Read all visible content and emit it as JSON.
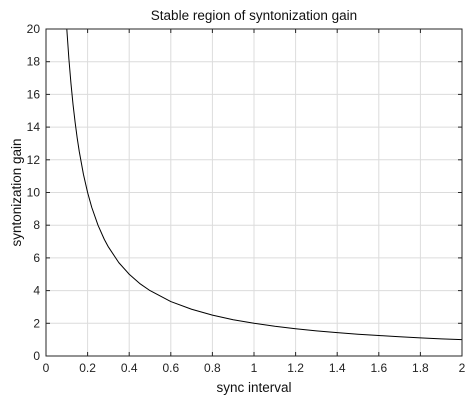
{
  "chart_data": {
    "type": "line",
    "title": "Stable region of syntonization gain",
    "xlabel": "sync interval",
    "ylabel": "syntonization gain",
    "xlim": [
      0,
      2
    ],
    "ylim": [
      0,
      20
    ],
    "xticks": [
      0,
      0.2,
      0.4,
      0.6,
      0.8,
      1,
      1.2,
      1.4,
      1.6,
      1.8,
      2
    ],
    "xtick_labels": [
      "0",
      "0.2",
      "0.4",
      "0.6",
      "0.8",
      "1",
      "1.2",
      "1.4",
      "1.6",
      "1.8",
      "2"
    ],
    "yticks": [
      0,
      2,
      4,
      6,
      8,
      10,
      12,
      14,
      16,
      18,
      20
    ],
    "ytick_labels": [
      "0",
      "2",
      "4",
      "6",
      "8",
      "10",
      "12",
      "14",
      "16",
      "18",
      "20"
    ],
    "grid": true,
    "series": [
      {
        "color": "#000000",
        "x": [
          0.1,
          0.11,
          0.12,
          0.13,
          0.14,
          0.15,
          0.16,
          0.18,
          0.2,
          0.22,
          0.25,
          0.28,
          0.3,
          0.35,
          0.4,
          0.45,
          0.5,
          0.6,
          0.7,
          0.8,
          0.9,
          1.0,
          1.1,
          1.2,
          1.3,
          1.4,
          1.5,
          1.6,
          1.7,
          1.8,
          1.9,
          2.0
        ],
        "y": [
          20,
          18.18,
          16.67,
          15.38,
          14.29,
          13.33,
          12.5,
          11.11,
          10,
          9.09,
          8,
          7.14,
          6.67,
          5.71,
          5,
          4.44,
          4,
          3.33,
          2.86,
          2.5,
          2.22,
          2,
          1.82,
          1.67,
          1.54,
          1.43,
          1.33,
          1.25,
          1.18,
          1.11,
          1.05,
          1.0
        ]
      }
    ]
  }
}
